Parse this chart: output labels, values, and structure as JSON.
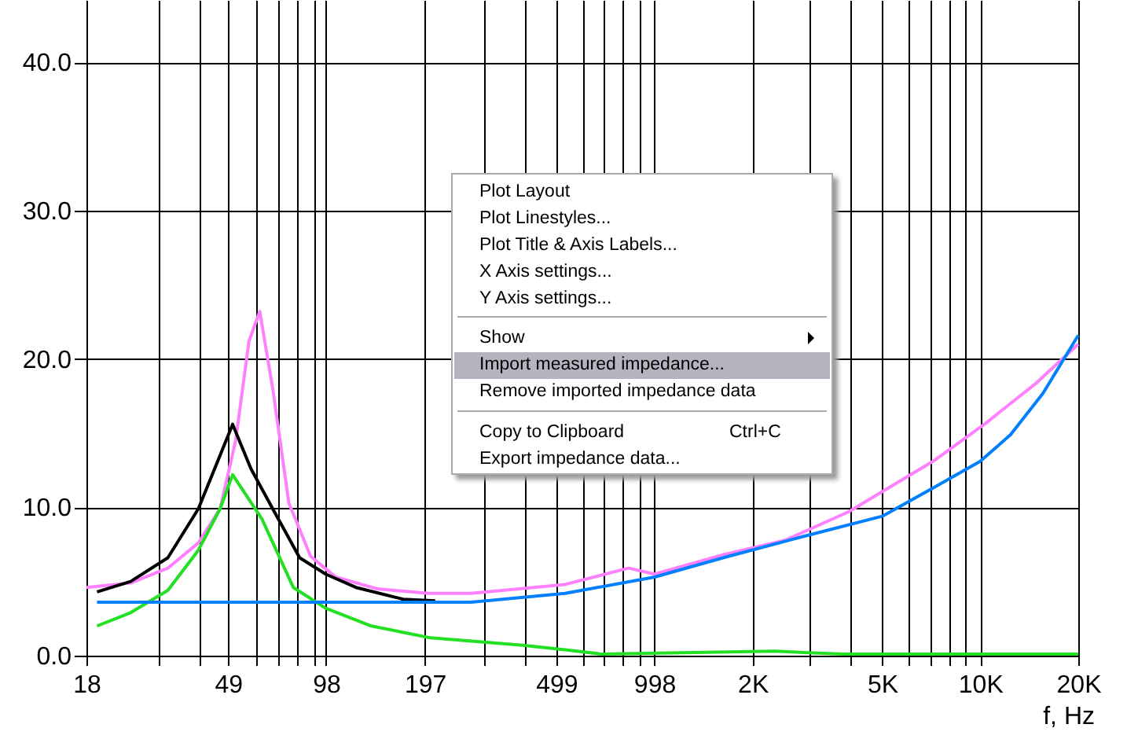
{
  "chart_data": {
    "type": "line",
    "xlabel": "f, Hz",
    "log": "x",
    "grid": true,
    "xlim": [
      18,
      20000
    ],
    "ylim": [
      0,
      44.2
    ],
    "xticks": [
      18,
      {
        "value": 30,
        "label": null
      },
      {
        "value": 40,
        "label": null
      },
      49,
      {
        "value": 60,
        "label": null
      },
      {
        "value": 70,
        "label": null
      },
      {
        "value": 80,
        "label": null
      },
      {
        "value": 90,
        "label": null
      },
      98,
      197,
      {
        "value": 300,
        "label": null
      },
      {
        "value": 400,
        "label": null
      },
      499,
      {
        "value": 600,
        "label": null
      },
      {
        "value": 700,
        "label": null
      },
      {
        "value": 800,
        "label": null
      },
      {
        "value": 900,
        "label": null
      },
      998,
      {
        "value": 2000,
        "label": "2K"
      },
      {
        "value": 3000,
        "label": null
      },
      {
        "value": 4000,
        "label": null
      },
      {
        "value": 5000,
        "label": "5K"
      },
      {
        "value": 6000,
        "label": null
      },
      {
        "value": 7000,
        "label": null
      },
      {
        "value": 8000,
        "label": null
      },
      {
        "value": 9000,
        "label": null
      },
      {
        "value": 10000,
        "label": "10K"
      },
      {
        "value": 20000,
        "label": "20K"
      }
    ],
    "yticks": [
      {
        "value": 0,
        "label": "0.0"
      },
      {
        "value": 10,
        "label": "10.0"
      },
      {
        "value": 20,
        "label": "20.0"
      },
      {
        "value": 30,
        "label": "30.0"
      },
      {
        "value": 40,
        "label": "40.0"
      }
    ],
    "series": [
      {
        "color": "#ff80ff",
        "x": [
          18,
          24.6,
          32,
          39.7,
          46.3,
          51.7,
          56.8,
          61.3,
          67.2,
          75.3,
          87.8,
          105,
          141,
          202,
          273,
          531,
          832,
          1000,
          1622,
          2531,
          3941,
          7160,
          10300,
          14900,
          20000
        ],
        "values": [
          4.6,
          4.9,
          5.9,
          7.6,
          9.9,
          14.5,
          21.2,
          23.2,
          18.0,
          10.3,
          6.7,
          5.3,
          4.5,
          4.2,
          4.2,
          4.8,
          5.9,
          5.5,
          6.8,
          7.8,
          9.7,
          13.1,
          15.6,
          18.4,
          21.0
        ]
      },
      {
        "color": "#000000",
        "x": [
          19.4,
          24.6,
          32,
          39.7,
          46.3,
          50.6,
          57.6,
          67.2,
          81.3,
          97.7,
          121,
          169,
          212
        ],
        "values": [
          4.3,
          5.0,
          6.6,
          9.9,
          13.5,
          15.6,
          12.6,
          9.9,
          6.6,
          5.5,
          4.6,
          3.8,
          3.7
        ]
      },
      {
        "color": "#22e022",
        "x": [
          19.4,
          24.6,
          32,
          39.7,
          46.3,
          50.6,
          62.3,
          77.7,
          97.7,
          135,
          205,
          393,
          531,
          689,
          2349,
          3780,
          20000
        ],
        "values": [
          2.0,
          2.9,
          4.4,
          7.1,
          9.9,
          12.2,
          9.2,
          4.6,
          3.2,
          2.0,
          1.2,
          0.7,
          0.4,
          0.1,
          0.3,
          0.1,
          0.1
        ]
      },
      {
        "color": "#0080ff",
        "x": [
          19.4,
          200,
          273,
          531,
          1000,
          1622,
          2825,
          5000,
          7160,
          10000,
          12400,
          15600,
          20000
        ],
        "values": [
          3.6,
          3.6,
          3.6,
          4.2,
          5.3,
          6.6,
          8.0,
          9.4,
          11.3,
          13.1,
          14.9,
          17.7,
          21.6
        ]
      }
    ],
    "annotations": [
      "Plot Layout",
      "Plot Linestyles...",
      "Plot Title & Axis Labels...",
      "X Axis settings...",
      "Y Axis settings...",
      "Show",
      "Import measured impedance...",
      "Remove imported impedance data",
      "Copy to Clipboard",
      "Ctrl+C",
      "Export impedance data..."
    ]
  }
}
